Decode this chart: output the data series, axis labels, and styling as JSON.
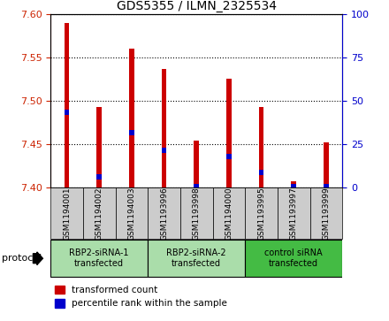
{
  "title": "GDS5355 / ILMN_2325534",
  "samples": [
    "GSM1194001",
    "GSM1194002",
    "GSM1194003",
    "GSM1193996",
    "GSM1193998",
    "GSM1194000",
    "GSM1193995",
    "GSM1193997",
    "GSM1193999"
  ],
  "red_values": [
    7.59,
    7.493,
    7.561,
    7.537,
    7.454,
    7.526,
    7.493,
    7.408,
    7.452
  ],
  "blue_values": [
    7.487,
    7.413,
    7.464,
    7.443,
    7.401,
    7.436,
    7.418,
    7.401,
    7.401
  ],
  "ylim_left": [
    7.4,
    7.6
  ],
  "yticks_left": [
    7.4,
    7.45,
    7.5,
    7.55,
    7.6
  ],
  "ylim_right": [
    0,
    100
  ],
  "yticks_right": [
    0,
    25,
    50,
    75,
    100
  ],
  "groups": [
    {
      "label": "RBP2-siRNA-1\ntransfected",
      "indices": [
        0,
        1,
        2
      ],
      "color": "#aaddaa"
    },
    {
      "label": "RBP2-siRNA-2\ntransfected",
      "indices": [
        3,
        4,
        5
      ],
      "color": "#aaddaa"
    },
    {
      "label": "control siRNA\ntransfected",
      "indices": [
        6,
        7,
        8
      ],
      "color": "#44bb44"
    }
  ],
  "bar_width": 0.15,
  "red_color": "#cc0000",
  "blue_color": "#0000cc",
  "bg_color": "#ffffff",
  "sample_box_color": "#cccccc",
  "protocol_label": "protocol"
}
